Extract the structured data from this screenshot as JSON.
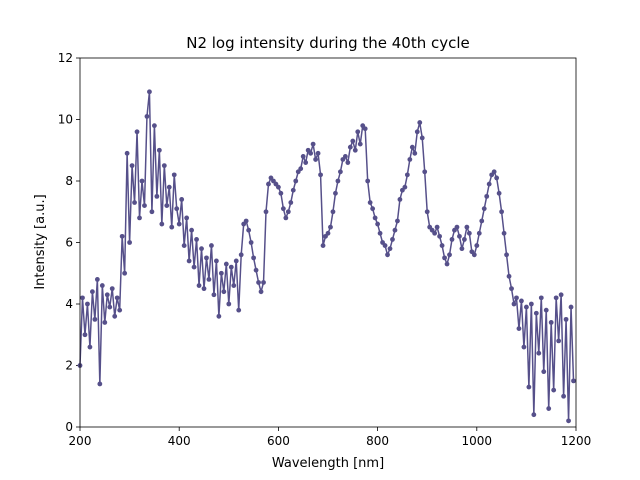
{
  "chart_data": {
    "type": "line",
    "title": "N2 log intensity during the 40th cycle",
    "xlabel": "Wavelength [nm]",
    "ylabel": "Intensity [a.u.]",
    "xlim": [
      200,
      1200
    ],
    "ylim": [
      0,
      12
    ],
    "xticks": [
      200,
      400,
      600,
      800,
      1000,
      1200
    ],
    "yticks": [
      0,
      2,
      4,
      6,
      8,
      10,
      12
    ],
    "grid": false,
    "x": [
      200,
      205,
      210,
      215,
      220,
      225,
      230,
      235,
      240,
      245,
      250,
      255,
      260,
      265,
      270,
      275,
      280,
      285,
      290,
      295,
      300,
      305,
      310,
      315,
      320,
      325,
      330,
      335,
      340,
      345,
      350,
      355,
      360,
      365,
      370,
      375,
      380,
      385,
      390,
      395,
      400,
      405,
      410,
      415,
      420,
      425,
      430,
      435,
      440,
      445,
      450,
      455,
      460,
      465,
      470,
      475,
      480,
      485,
      490,
      495,
      500,
      505,
      510,
      515,
      520,
      525,
      530,
      535,
      540,
      545,
      550,
      555,
      560,
      565,
      570,
      575,
      580,
      585,
      590,
      595,
      600,
      605,
      610,
      615,
      620,
      625,
      630,
      635,
      640,
      645,
      650,
      655,
      660,
      665,
      670,
      675,
      680,
      685,
      690,
      695,
      700,
      705,
      710,
      715,
      720,
      725,
      730,
      735,
      740,
      745,
      750,
      755,
      760,
      765,
      770,
      775,
      780,
      785,
      790,
      795,
      800,
      805,
      810,
      815,
      820,
      825,
      830,
      835,
      840,
      845,
      850,
      855,
      860,
      865,
      870,
      875,
      880,
      885,
      890,
      895,
      900,
      905,
      910,
      915,
      920,
      925,
      930,
      935,
      940,
      945,
      950,
      955,
      960,
      965,
      970,
      975,
      980,
      985,
      990,
      995,
      1000,
      1005,
      1010,
      1015,
      1020,
      1025,
      1030,
      1035,
      1040,
      1045,
      1050,
      1055,
      1060,
      1065,
      1070,
      1075,
      1080,
      1085,
      1090,
      1095,
      1100,
      1105,
      1110,
      1115,
      1120,
      1125,
      1130,
      1135,
      1140,
      1145,
      1150,
      1155,
      1160,
      1165,
      1170,
      1175,
      1180,
      1185,
      1190,
      1195
    ],
    "series": [
      {
        "color": "#56508a",
        "values": [
          2.0,
          4.2,
          3.0,
          4.0,
          2.6,
          4.4,
          3.5,
          4.8,
          1.4,
          4.6,
          3.4,
          4.3,
          3.9,
          4.5,
          3.6,
          4.2,
          3.8,
          6.2,
          5.0,
          8.9,
          6.0,
          8.5,
          7.3,
          9.6,
          6.8,
          8.0,
          7.2,
          10.1,
          10.9,
          7.0,
          9.8,
          7.5,
          9.0,
          6.6,
          8.5,
          7.2,
          7.8,
          6.5,
          8.2,
          7.1,
          6.6,
          7.4,
          5.9,
          6.8,
          5.4,
          6.4,
          5.2,
          6.1,
          4.6,
          5.8,
          4.5,
          5.5,
          4.8,
          5.9,
          4.3,
          5.4,
          3.6,
          5.0,
          4.4,
          5.3,
          4.0,
          5.2,
          4.6,
          5.4,
          3.8,
          5.6,
          6.6,
          6.7,
          6.4,
          6.0,
          5.5,
          5.1,
          4.7,
          4.4,
          4.7,
          7.0,
          7.9,
          8.1,
          8.0,
          7.9,
          7.8,
          7.6,
          7.1,
          6.8,
          7.0,
          7.3,
          7.7,
          8.0,
          8.3,
          8.4,
          8.8,
          8.6,
          9.0,
          8.9,
          9.2,
          8.7,
          8.9,
          8.2,
          5.9,
          6.2,
          6.3,
          6.5,
          7.0,
          7.6,
          8.0,
          8.3,
          8.7,
          8.8,
          8.6,
          9.1,
          9.3,
          9.0,
          9.6,
          9.2,
          9.8,
          9.7,
          8.0,
          7.3,
          7.1,
          6.8,
          6.6,
          6.3,
          6.0,
          5.9,
          5.6,
          5.8,
          6.1,
          6.4,
          6.7,
          7.4,
          7.7,
          7.8,
          8.2,
          8.7,
          9.1,
          8.9,
          9.6,
          9.9,
          9.4,
          8.3,
          7.0,
          6.5,
          6.4,
          6.3,
          6.5,
          6.2,
          5.9,
          5.5,
          5.3,
          5.6,
          6.1,
          6.4,
          6.5,
          6.2,
          5.8,
          6.1,
          6.5,
          6.3,
          5.7,
          5.6,
          5.9,
          6.3,
          6.7,
          7.1,
          7.5,
          7.9,
          8.2,
          8.3,
          8.1,
          7.6,
          7.0,
          6.3,
          5.6,
          4.9,
          4.5,
          4.0,
          4.2,
          3.2,
          4.1,
          2.6,
          3.9,
          1.3,
          4.0,
          0.4,
          3.7,
          2.4,
          4.2,
          1.8,
          3.8,
          0.6,
          3.4,
          1.2,
          4.2,
          2.8,
          4.3,
          1.0,
          3.5,
          0.2,
          3.9,
          1.5
        ]
      }
    ]
  }
}
